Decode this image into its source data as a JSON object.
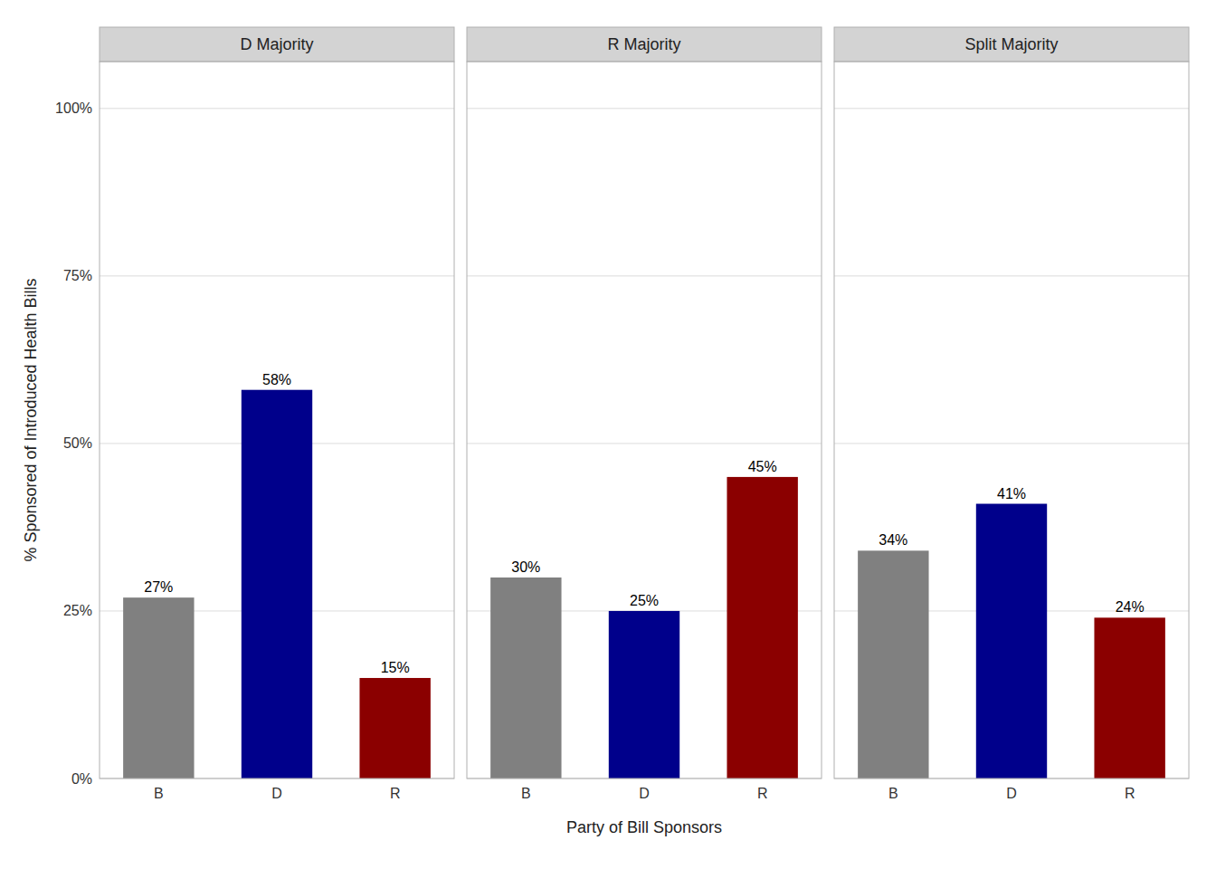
{
  "chart_data": [
    {
      "type": "bar",
      "title": "D Majority",
      "categories": [
        "B",
        "D",
        "R"
      ],
      "values": [
        27,
        58,
        15
      ],
      "value_labels": [
        "27%",
        "58%",
        "15%"
      ],
      "colors": [
        "#808080",
        "#00008b",
        "#8b0000"
      ],
      "ylabel": "% Sponsored of Introduced Health Bills",
      "ylim": [
        0,
        107
      ],
      "yticks": [
        {
          "value": 0,
          "label": "0%"
        },
        {
          "value": 25,
          "label": "25%"
        },
        {
          "value": 50,
          "label": "50%"
        },
        {
          "value": 75,
          "label": "75%"
        },
        {
          "value": 100,
          "label": "100%"
        }
      ],
      "grid": true,
      "data_labels": true
    },
    {
      "type": "bar",
      "title": "R Majority",
      "categories": [
        "B",
        "D",
        "R"
      ],
      "values": [
        30,
        25,
        45
      ],
      "value_labels": [
        "30%",
        "25%",
        "45%"
      ],
      "colors": [
        "#808080",
        "#00008b",
        "#8b0000"
      ],
      "xlabel": "Party of Bill Sponsors",
      "ylim": [
        0,
        107
      ],
      "yticks": [
        0,
        25,
        50,
        75,
        100
      ],
      "grid": true,
      "data_labels": true,
      "tick_labels": "x"
    },
    {
      "type": "bar",
      "title": "Split Majority",
      "categories": [
        "B",
        "D",
        "R"
      ],
      "values": [
        34,
        41,
        24
      ],
      "value_labels": [
        "34%",
        "41%",
        "24%"
      ],
      "colors": [
        "#808080",
        "#00008b",
        "#8b0000"
      ],
      "ylim": [
        0,
        107
      ],
      "yticks": [
        0,
        25,
        50,
        75,
        100
      ],
      "grid": true,
      "data_labels": true,
      "tick_labels": "x"
    }
  ]
}
